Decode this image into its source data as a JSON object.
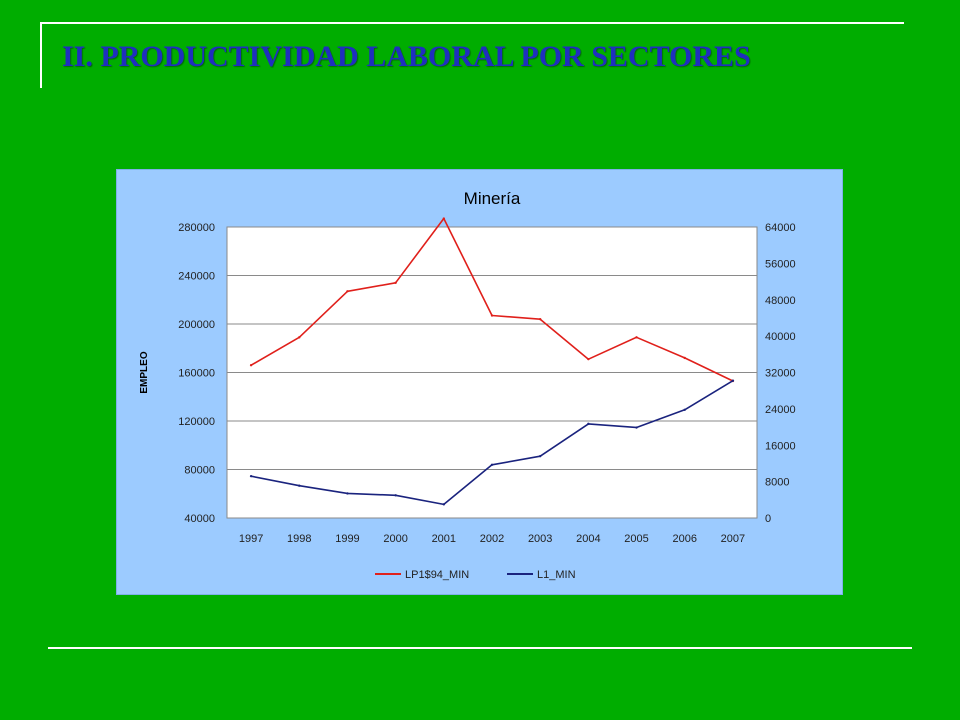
{
  "slide": {
    "title": "II. PRODUCTIVIDAD LABORAL POR SECTORES"
  },
  "colors": {
    "background": "#00AD00",
    "title": "#1F2FBF",
    "chart_background": "#9CCBFF",
    "plot_background": "#FFFFFF",
    "series_red": "#E0201B",
    "series_blue": "#1A237E"
  },
  "chart_data": {
    "type": "line",
    "title": "Minería",
    "ylabel": "EMPLEO",
    "y2label": "",
    "xlabel": "",
    "categories": [
      "1997",
      "1998",
      "1999",
      "2000",
      "2001",
      "2002",
      "2003",
      "2004",
      "2005",
      "2006",
      "2007"
    ],
    "ylim": [
      40000,
      280000
    ],
    "y_ticks": [
      40000,
      80000,
      120000,
      160000,
      200000,
      240000,
      280000
    ],
    "y2lim": [
      0,
      64000
    ],
    "y2_ticks": [
      0,
      8000,
      16000,
      24000,
      32000,
      40000,
      48000,
      56000,
      64000
    ],
    "grid": true,
    "legend_position": "bottom",
    "series": [
      {
        "name": "LP1$94_MIN",
        "axis": "left",
        "color": "#E0201B",
        "values": [
          166000,
          189000,
          227000,
          234000,
          287000,
          207000,
          204000,
          171000,
          189000,
          172000,
          153000
        ]
      },
      {
        "name": "L1_MIN",
        "axis": "right",
        "color": "#1A237E",
        "values": [
          9200,
          7100,
          5400,
          5000,
          3000,
          11700,
          13600,
          20700,
          19900,
          23800,
          30200
        ]
      }
    ]
  }
}
